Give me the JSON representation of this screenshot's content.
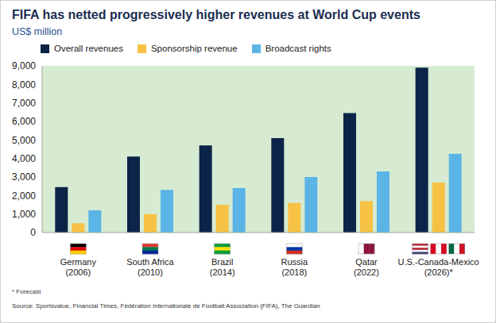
{
  "chart_data": {
    "type": "bar",
    "title": "FIFA has netted progressively higher revenues at World Cup events",
    "subtitle": "US$ million",
    "categories": [
      "Germany (2006)",
      "South Africa (2010)",
      "Brazil (2014)",
      "Russia (2018)",
      "Qatar (2022)",
      "U.S.-Canada-Mexico (2026)*"
    ],
    "series": [
      {
        "name": "Overall revenues",
        "color": "#0b2447",
        "values": [
          2450,
          4100,
          4700,
          5100,
          6450,
          8900
        ]
      },
      {
        "name": "Sponsorship revenue",
        "color": "#f7c244",
        "values": [
          500,
          1000,
          1500,
          1600,
          1700,
          2700
        ]
      },
      {
        "name": "Broadcast rights",
        "color": "#5bb4e6",
        "values": [
          1200,
          2300,
          2400,
          3000,
          3300,
          4250
        ]
      }
    ],
    "ylim": [
      0,
      9000
    ],
    "yticks": [
      0,
      {
        "value": 1000,
        "label": "1,000"
      },
      {
        "value": 2000,
        "label": "2,000"
      },
      {
        "value": 3000,
        "label": "3,000"
      },
      {
        "value": 4000,
        "label": "4,000"
      },
      {
        "value": 5000,
        "label": "5,000"
      },
      {
        "value": 6000,
        "label": "6,000"
      },
      {
        "value": 7000,
        "label": "7,000"
      },
      {
        "value": 8000,
        "label": "8,000"
      },
      {
        "value": 9000,
        "label": "9,000"
      }
    ],
    "grid": false,
    "legend": "top-left",
    "annotations": [
      "* Forecast",
      "Source: Sportsvalue, Financial Times, Fédération Internationale de Football Association (FIFA), The Guardian"
    ]
  }
}
